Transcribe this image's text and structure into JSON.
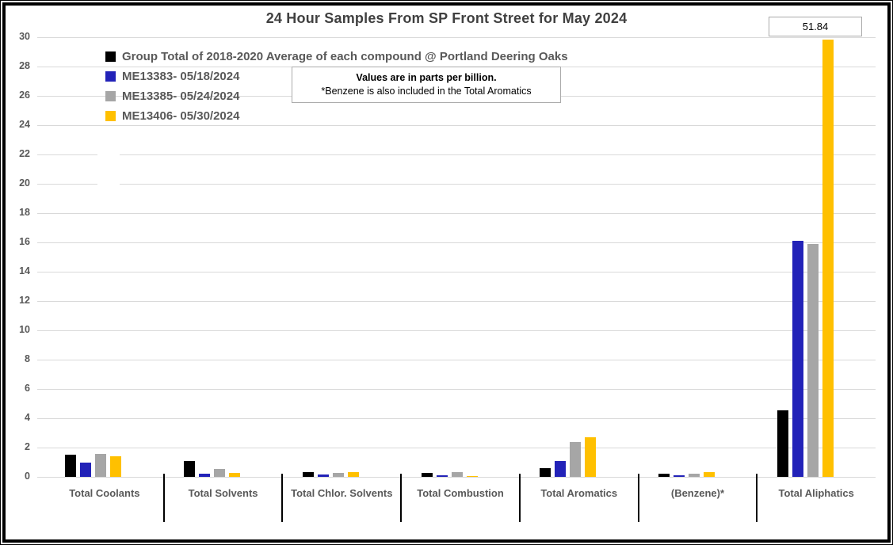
{
  "chart_data": {
    "type": "bar",
    "title": "24 Hour Samples From SP Front Street for May 2024",
    "unit_note": [
      "Values are in parts per billion.",
      "*Benzene is also included in the Total Aromatics"
    ],
    "categories": [
      "Total Coolants",
      "Total Solvents",
      "Total Chlor. Solvents",
      "Total Combustion",
      "Total Aromatics",
      "(Benzene)*",
      "Total Aliphatics"
    ],
    "series": [
      {
        "name": "Group Total of 2018-2020 Average of each compound @ Portland Deering Oaks",
        "color": "#000000",
        "values": [
          1.5,
          1.1,
          0.35,
          0.25,
          0.6,
          0.2,
          4.55
        ]
      },
      {
        "name": "ME13383- 05/18/2024",
        "color": "#2222B8",
        "values": [
          0.95,
          0.2,
          0.18,
          0.1,
          1.1,
          0.13,
          16.1
        ]
      },
      {
        "name": "ME13385- 05/24/2024",
        "color": "#A6A6A6",
        "values": [
          1.55,
          0.55,
          0.28,
          0.3,
          2.4,
          0.22,
          15.9
        ]
      },
      {
        "name": "ME13406- 05/30/2024",
        "color": "#FFC000",
        "values": [
          1.4,
          0.25,
          0.3,
          0.08,
          2.7,
          0.35,
          51.84
        ]
      }
    ],
    "ylim": [
      0,
      30
    ],
    "yticks": [
      0,
      2,
      4,
      6,
      8,
      10,
      12,
      14,
      16,
      18,
      20,
      22,
      24,
      26,
      28,
      30
    ],
    "grid": "horizontal",
    "legend_position": "top-left-inside",
    "overflow_label": {
      "value": "51.84",
      "series": "ME13406- 05/30/2024",
      "category": "Total Aliphatics"
    }
  }
}
